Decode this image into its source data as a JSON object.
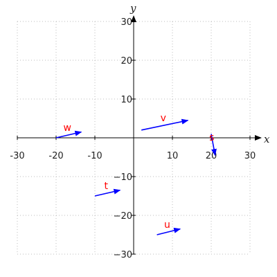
{
  "chart_data": {
    "type": "vector-field",
    "title": "",
    "xlabel": "x",
    "ylabel": "y",
    "xlim": [
      -30,
      30
    ],
    "ylim": [
      -30,
      30
    ],
    "x_ticks": [
      -30,
      -20,
      -10,
      10,
      20,
      30
    ],
    "y_ticks": [
      -30,
      -20,
      -10,
      10,
      20,
      30
    ],
    "x_tick_labels": [
      "-30",
      "-20",
      "-10",
      "10",
      "20",
      "30"
    ],
    "y_tick_labels": [
      "−30",
      "−20",
      "−10",
      "10",
      "20",
      "30"
    ],
    "grid": true,
    "vector_color": "#0000ff",
    "label_color": "#ff0000",
    "vectors": [
      {
        "name": "w",
        "tail": [
          -20,
          0
        ],
        "head": [
          -13.5,
          1.5
        ]
      },
      {
        "name": "v",
        "tail": [
          2,
          2
        ],
        "head": [
          14,
          4.5
        ]
      },
      {
        "name": "s",
        "tail": [
          20,
          1
        ],
        "head": [
          21,
          -4.5
        ]
      },
      {
        "name": "t",
        "tail": [
          -10,
          -15
        ],
        "head": [
          -3.5,
          -13.5
        ]
      },
      {
        "name": "u",
        "tail": [
          6,
          -25
        ],
        "head": [
          12,
          -23.5
        ]
      }
    ]
  }
}
